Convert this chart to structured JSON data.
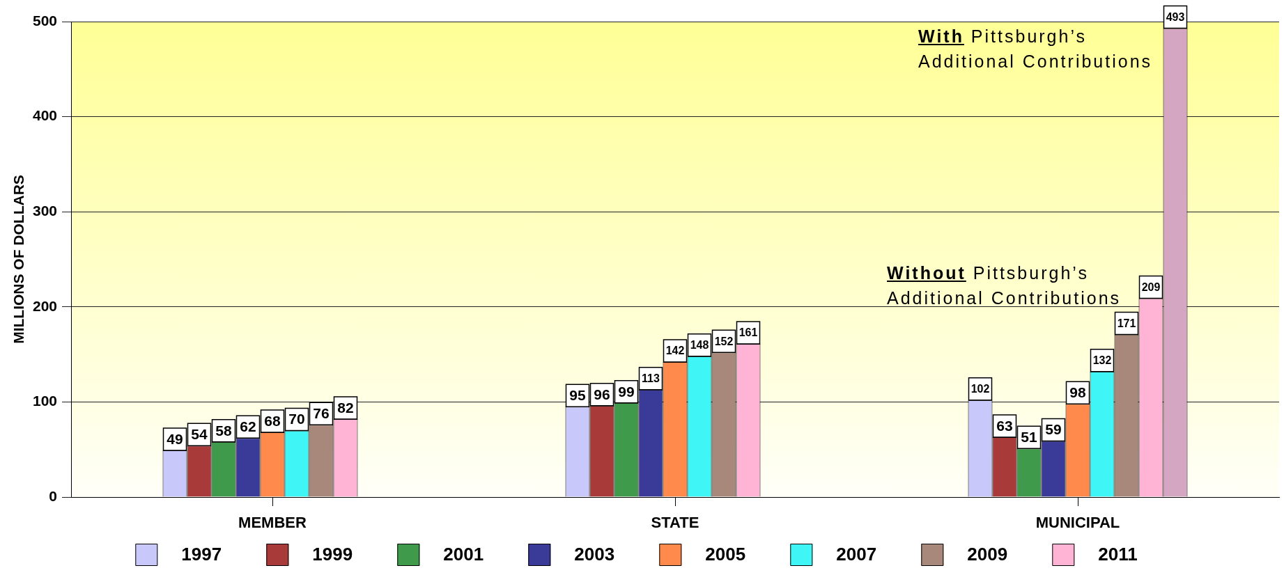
{
  "chart_data": {
    "type": "bar",
    "categories": [
      "MEMBER",
      "STATE",
      "MUNICIPAL"
    ],
    "series": [
      {
        "name": "1997",
        "color": "#c8c8fa",
        "values": [
          49,
          95,
          102
        ]
      },
      {
        "name": "1999",
        "color": "#a83a3a",
        "values": [
          54,
          96,
          63
        ]
      },
      {
        "name": "2001",
        "color": "#3f9a4c",
        "values": [
          58,
          99,
          51
        ]
      },
      {
        "name": "2003",
        "color": "#3a3a98",
        "values": [
          62,
          113,
          59
        ]
      },
      {
        "name": "2005",
        "color": "#ff8a4c",
        "values": [
          68,
          142,
          98
        ]
      },
      {
        "name": "2007",
        "color": "#3ff5f5",
        "values": [
          70,
          148,
          132
        ]
      },
      {
        "name": "2009",
        "color": "#a8887a",
        "values": [
          76,
          152,
          171
        ]
      },
      {
        "name": "2011",
        "color": "#ffb4d6",
        "values": [
          82,
          161,
          209
        ]
      },
      {
        "color": "#d4a6c2",
        "values": [
          null,
          null,
          493
        ]
      }
    ],
    "ylabel": "MILLIONS OF DOLLARS",
    "ylim": [
      0,
      500
    ],
    "yticks": [
      0,
      100,
      200,
      300,
      400,
      500
    ],
    "grid": "y",
    "legend": "bottom",
    "data_labels": true,
    "annotations": [
      "With Pittsburgh’s Additional Contributions",
      "Without Pittsburgh’s Additional Contributions"
    ]
  }
}
